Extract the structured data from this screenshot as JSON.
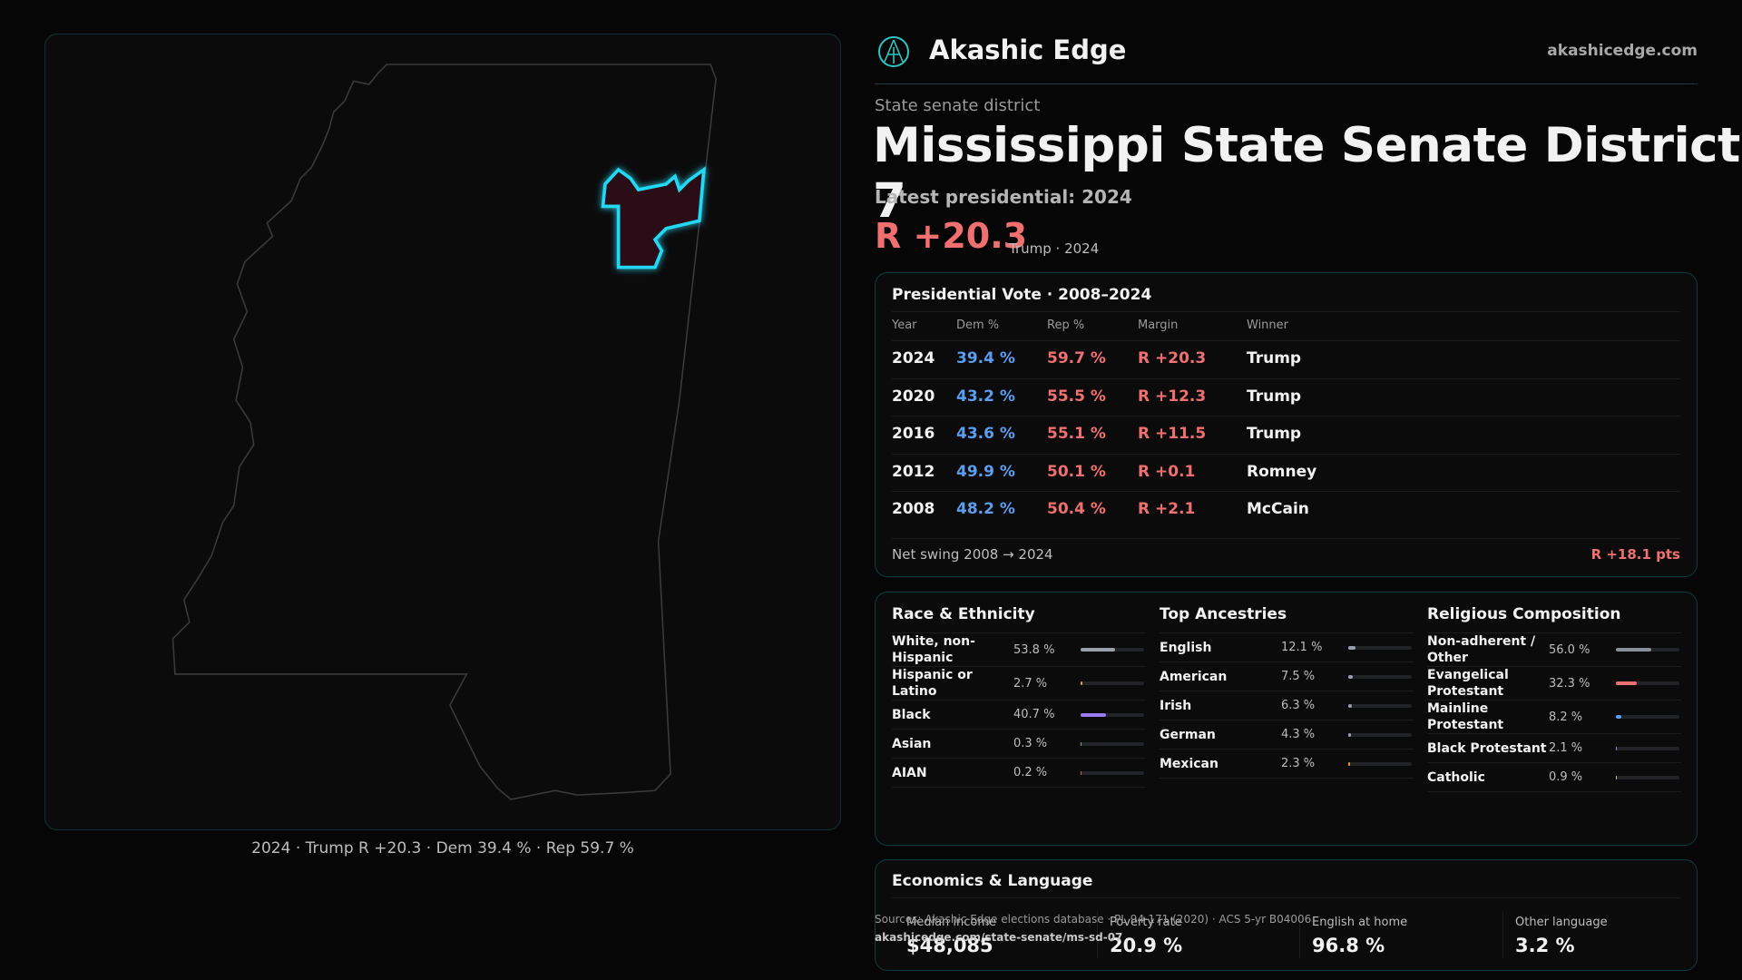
{
  "brand": {
    "name": "Akashic Edge",
    "url": "akashicedge.com"
  },
  "header": {
    "kicker": "State senate district",
    "title": "Mississippi State Senate District 7",
    "latest": "Latest presidential: 2024",
    "margin": "R +20.3",
    "margin_note": "Trump · 2024"
  },
  "map": {
    "caption": "2024 · Trump R +20.3 · Dem 39.4 % · Rep 59.7 %"
  },
  "presidential": {
    "title": "Presidential Vote · 2008–2024",
    "columns": [
      "Year",
      "Dem %",
      "Rep %",
      "Margin",
      "Winner"
    ],
    "rows": [
      [
        "2024",
        "39.4 %",
        "59.7 %",
        "R +20.3",
        "Trump"
      ],
      [
        "2020",
        "43.2 %",
        "55.5 %",
        "R +12.3",
        "Trump"
      ],
      [
        "2016",
        "43.6 %",
        "55.1 %",
        "R +11.5",
        "Trump"
      ],
      [
        "2012",
        "49.9 %",
        "50.1 %",
        "R +0.1",
        "Romney"
      ],
      [
        "2008",
        "48.2 %",
        "50.4 %",
        "R +2.1",
        "McCain"
      ]
    ],
    "net_swing_label": "Net swing 2008 → 2024",
    "net_swing_value": "R +18.1 pts"
  },
  "panels": [
    {
      "title": "Race & Ethnicity",
      "rows": [
        {
          "name": "White, non-Hispanic",
          "value": 53.8,
          "value_label": "53.8 %",
          "color": "#9aa0aa"
        },
        {
          "name": "Hispanic or Latino",
          "value": 2.7,
          "value_label": "2.7 %",
          "color": "#e0a030"
        },
        {
          "name": "Black",
          "value": 40.7,
          "value_label": "40.7 %",
          "color": "#9b7df2"
        },
        {
          "name": "Asian",
          "value": 0.3,
          "value_label": "0.3 %",
          "color": "#2fc4a4"
        },
        {
          "name": "AIAN",
          "value": 0.2,
          "value_label": "0.2 %",
          "color": "#c46a4a"
        }
      ]
    },
    {
      "title": "Top Ancestries",
      "rows": [
        {
          "name": "English",
          "value": 12.1,
          "value_label": "12.1 %",
          "color": "#9aa0aa"
        },
        {
          "name": "American",
          "value": 7.5,
          "value_label": "7.5 %",
          "color": "#9aa0aa"
        },
        {
          "name": "Irish",
          "value": 6.3,
          "value_label": "6.3 %",
          "color": "#9aa0aa"
        },
        {
          "name": "German",
          "value": 4.3,
          "value_label": "4.3 %",
          "color": "#9aa0aa"
        },
        {
          "name": "Mexican",
          "value": 2.3,
          "value_label": "2.3 %",
          "color": "#e0a030"
        }
      ]
    },
    {
      "title": "Religious Composition",
      "rows": [
        {
          "name": "Non-adherent / Other",
          "value": 56.0,
          "value_label": "56.0 %",
          "color": "#8a9099"
        },
        {
          "name": "Evangelical Protestant",
          "value": 32.3,
          "value_label": "32.3 %",
          "color": "#f07070"
        },
        {
          "name": "Mainline Protestant",
          "value": 8.2,
          "value_label": "8.2 %",
          "color": "#5b9ef0"
        },
        {
          "name": "Black Protestant",
          "value": 2.1,
          "value_label": "2.1 %",
          "color": "#9b7df2"
        },
        {
          "name": "Catholic",
          "value": 0.9,
          "value_label": "0.9 %",
          "color": "#d8c040"
        }
      ]
    }
  ],
  "economics": {
    "title": "Economics & Language",
    "items": [
      {
        "label": "Median income",
        "value": "$48,085"
      },
      {
        "label": "Poverty rate",
        "value": "20.9 %"
      },
      {
        "label": "English at home",
        "value": "96.8 %"
      },
      {
        "label": "Other language",
        "value": "3.2 %"
      }
    ]
  },
  "footer": {
    "sources": "Sources: Akashic Edge elections database · PL 94-171 (2020) · ACS 5-yr B04006",
    "link": "akashicedge.com/state-senate/ms-sd-07"
  }
}
